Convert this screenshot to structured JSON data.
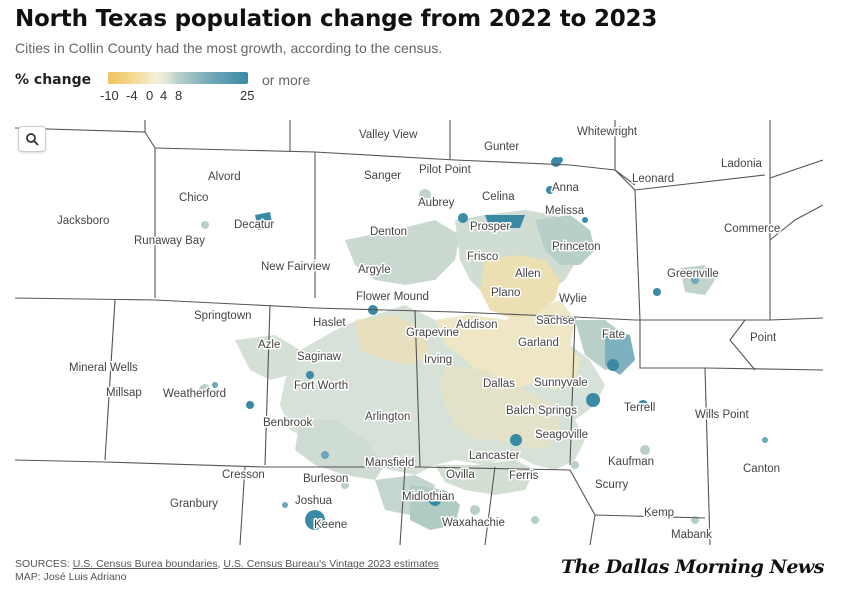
{
  "header": {
    "title": "North Texas population change from 2022 to 2023",
    "subtitle": "Cities in Collin County had the most growth, according to the census."
  },
  "legend": {
    "label": "% change",
    "ticks": [
      "-10",
      "-4",
      "0",
      "4",
      "8",
      "25"
    ],
    "more_label": "or more",
    "min_color": "#f0c25c",
    "mid_color": "#f5efd8",
    "max_color": "#3a8aa5"
  },
  "search": {
    "icon": "search-icon"
  },
  "cities": [
    "Valley View",
    "Whitewright",
    "Gunter",
    "Pilot Point",
    "Sanger",
    "Ladonia",
    "Anna",
    "Leonard",
    "Alvord",
    "Celina",
    "Melissa",
    "Aubrey",
    "Chico",
    "Jacksboro",
    "Decatur",
    "Prosper",
    "Commerce",
    "Denton",
    "Runaway Bay",
    "Princeton",
    "Frisco",
    "Allen",
    "New Fairview",
    "Argyle",
    "Greenville",
    "Plano",
    "Flower Mound",
    "Wylie",
    "Springtown",
    "Haslet",
    "Addison",
    "Sachse",
    "Grapevine",
    "Point",
    "Azle",
    "Fate",
    "Garland",
    "Saginaw",
    "Irving",
    "Mineral Wells",
    "Sunnyvale",
    "Dallas",
    "Fort Worth",
    "Millsap",
    "Weatherford",
    "Terrell",
    "Balch Springs",
    "Wills Point",
    "Arlington",
    "Benbrook",
    "Seagoville",
    "Lancaster",
    "Mansfield",
    "Kaufman",
    "Canton",
    "Cresson",
    "Ovilla",
    "Ferris",
    "Burleson",
    "Scurry",
    "Midlothian",
    "Granbury",
    "Joshua",
    "Kemp",
    "Waxahachie",
    "Keene",
    "Mabank"
  ],
  "footer": {
    "sources_prefix": "SOURCES: ",
    "source1": "U.S. Census Burea boundaries",
    "separator": ", ",
    "source2": "U.S. Census Bureau's Vintage 2023 estimates",
    "map_credit": "MAP: José Luis Adriano",
    "logo": "The Dallas Morning News"
  }
}
